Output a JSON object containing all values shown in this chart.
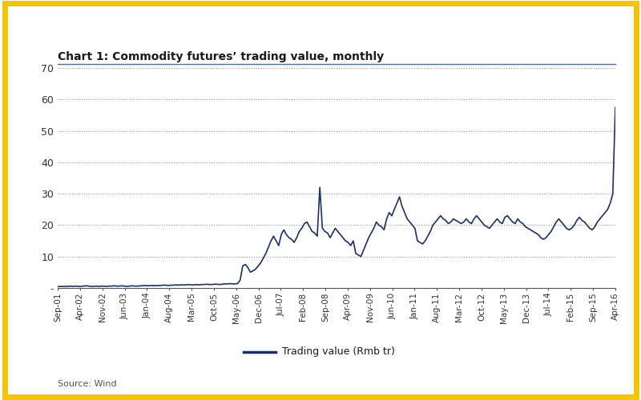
{
  "title": "Chart 1: Commodity futures’ trading value, monthly",
  "source": "Source: Wind",
  "legend_label": "Trading value (Rmb tr)",
  "line_color": "#1b2f6e",
  "background_color": "#ffffff",
  "border_color": "#f5c400",
  "ylim": [
    0,
    70
  ],
  "yticks": [
    0,
    10,
    20,
    30,
    40,
    50,
    60,
    70
  ],
  "ytick_labels": [
    "-",
    "10",
    "20",
    "30",
    "40",
    "50",
    "60",
    "70"
  ],
  "xtick_labels": [
    "Sep-01",
    "Apr-02",
    "Nov-02",
    "Jun-03",
    "Jan-04",
    "Aug-04",
    "Mar-05",
    "Oct-05",
    "May-06",
    "Dec-06",
    "Jul-07",
    "Feb-08",
    "Sep-08",
    "Apr-09",
    "Nov-09",
    "Jun-10",
    "Jan-11",
    "Aug-11",
    "Mar-12",
    "Oct-12",
    "May-13",
    "Dec-13",
    "Jul-14",
    "Feb-15",
    "Sep-15",
    "Apr-16"
  ],
  "values": [
    0.4,
    0.5,
    0.5,
    0.5,
    0.5,
    0.6,
    0.5,
    0.6,
    0.5,
    0.5,
    0.6,
    0.7,
    0.6,
    0.5,
    0.5,
    0.6,
    0.5,
    0.6,
    0.6,
    0.5,
    0.6,
    0.6,
    0.7,
    0.6,
    0.6,
    0.7,
    0.6,
    0.5,
    0.6,
    0.7,
    0.6,
    0.6,
    0.7,
    0.7,
    0.8,
    0.7,
    0.8,
    0.8,
    0.7,
    0.8,
    0.8,
    0.9,
    0.9,
    0.8,
    0.9,
    0.9,
    1.0,
    0.9,
    1.0,
    1.0,
    1.0,
    1.1,
    1.0,
    1.0,
    1.1,
    1.0,
    1.1,
    1.1,
    1.2,
    1.1,
    1.1,
    1.2,
    1.2,
    1.1,
    1.2,
    1.3,
    1.3,
    1.4,
    1.3,
    1.3,
    1.4,
    2.5,
    7.0,
    7.5,
    6.5,
    5.0,
    5.5,
    6.0,
    7.0,
    8.0,
    9.5,
    11.0,
    13.0,
    15.0,
    16.5,
    15.0,
    13.5,
    17.0,
    18.5,
    17.0,
    16.0,
    15.5,
    14.5,
    16.0,
    18.0,
    19.0,
    20.5,
    21.0,
    19.5,
    18.0,
    17.5,
    16.5,
    32.0,
    19.0,
    18.0,
    17.5,
    16.0,
    17.5,
    19.0,
    18.0,
    17.0,
    16.0,
    15.0,
    14.5,
    13.5,
    15.0,
    11.0,
    10.5,
    10.0,
    12.0,
    14.0,
    16.0,
    17.5,
    19.0,
    21.0,
    20.0,
    19.5,
    18.5,
    22.0,
    24.0,
    23.0,
    25.0,
    27.0,
    29.0,
    26.0,
    24.0,
    22.0,
    21.0,
    20.0,
    19.0,
    15.0,
    14.5,
    14.0,
    15.0,
    16.5,
    18.0,
    20.0,
    21.0,
    22.0,
    23.0,
    22.0,
    21.5,
    20.5,
    21.0,
    22.0,
    21.5,
    21.0,
    20.5,
    21.0,
    22.0,
    21.0,
    20.5,
    22.0,
    23.0,
    22.0,
    21.0,
    20.0,
    19.5,
    19.0,
    20.0,
    21.0,
    22.0,
    21.0,
    20.5,
    22.5,
    23.0,
    22.0,
    21.0,
    20.5,
    22.0,
    21.0,
    20.5,
    19.5,
    19.0,
    18.5,
    18.0,
    17.5,
    17.0,
    16.0,
    15.5,
    16.0,
    17.0,
    18.0,
    19.5,
    21.0,
    22.0,
    21.0,
    20.0,
    19.0,
    18.5,
    19.0,
    20.0,
    21.5,
    22.5,
    21.5,
    21.0,
    20.0,
    19.0,
    18.5,
    19.5,
    21.0,
    22.0,
    23.0,
    24.0,
    25.0,
    27.0,
    30.0,
    57.5
  ]
}
